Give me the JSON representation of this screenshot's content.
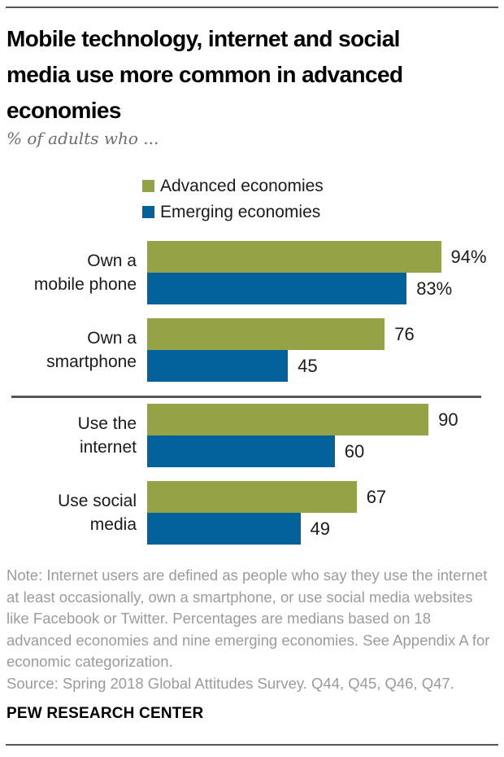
{
  "page": {
    "title_lines": [
      "Mobile technology, internet and social",
      "media use more common in advanced",
      "economies"
    ],
    "subtitle": "% of adults who ..."
  },
  "legend": {
    "items": [
      {
        "label": "Advanced economies",
        "color": "#95a346"
      },
      {
        "label": "Emerging economies",
        "color": "#03619c"
      }
    ]
  },
  "chart_data": {
    "type": "bar",
    "orientation": "horizontal",
    "title": "Mobile technology, internet and social media use more common in advanced economies",
    "subtitle": "% of adults who ...",
    "categories": [
      "Own a mobile phone",
      "Own a smartphone",
      "Use the internet",
      "Use social media"
    ],
    "category_display": [
      "Own a\nmobile phone",
      "Own a\nsmartphone",
      "Use the\ninternet",
      "Use social\nmedia"
    ],
    "series": [
      {
        "name": "Advanced economies",
        "color": "#95a346",
        "values": [
          94,
          76,
          90,
          67
        ],
        "value_labels": [
          "94%",
          "76",
          "90",
          "67"
        ]
      },
      {
        "name": "Emerging economies",
        "color": "#03619c",
        "values": [
          83,
          45,
          60,
          49
        ],
        "value_labels": [
          "83%",
          "45",
          "60",
          "49"
        ]
      }
    ],
    "xlim": [
      0,
      100
    ],
    "grid": false,
    "legend_position": "top",
    "divider_after_category": "Own a smartphone"
  },
  "footer": {
    "note": "Note: Internet users are defined as people who say they use the internet at least occasionally, own a smartphone, or use social media websites like Facebook or Twitter. Percentages are medians based on 18 advanced economies and nine emerging economies. See Appendix A for economic categorization.",
    "source": "Source: Spring 2018 Global Attitudes Survey. Q44, Q45, Q46, Q47.",
    "brand": "PEW RESEARCH CENTER"
  }
}
